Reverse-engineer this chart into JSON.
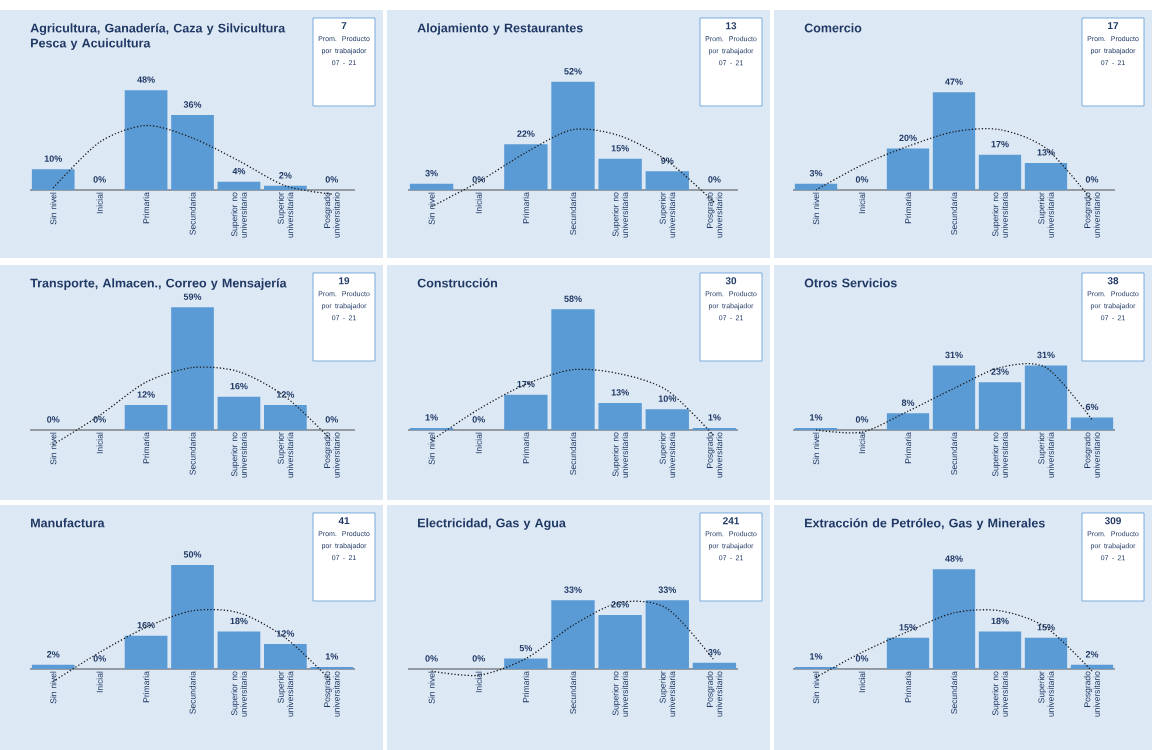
{
  "chart_data": [
    {
      "type": "bar",
      "title": "Agricultura, Ganadería, Caza y Silvicultura Pesca y Acuicultura",
      "categories": [
        "Sin nivel",
        "Inicial",
        "Primaria",
        "Secundaria",
        "Superior no universitaria",
        "Superior universitaria",
        "Posgrado universitario"
      ],
      "annotations": [
        "7",
        "Prom. Producto por trabajador 07 - 21"
      ],
      "series": [
        {
          "color": "#5b9bd5",
          "values": [
            10,
            0,
            48,
            36,
            4,
            2,
            0
          ],
          "value_labels": [
            "10%",
            "0%",
            "48%",
            "36%",
            "4%",
            "2%",
            "0%"
          ]
        },
        {
          "type": "line",
          "color": "#1a1a1a",
          "line_style": "dotted",
          "marker": "none",
          "values": [
            1,
            23,
            31,
            25,
            14,
            2,
            -2
          ]
        }
      ]
    },
    {
      "type": "bar",
      "title": "Alojamiento y Restaurantes",
      "categories": [
        "Sin nivel",
        "Inicial",
        "Primaria",
        "Secundaria",
        "Superior no universitaria",
        "Superior universitaria",
        "Posgrado universitario"
      ],
      "annotations": [
        "13",
        "Prom. Producto por trabajador 07 - 21"
      ],
      "series": [
        {
          "color": "#5b9bd5",
          "values": [
            3,
            0,
            22,
            52,
            15,
            9,
            0
          ],
          "value_labels": [
            "3%",
            "0%",
            "22%",
            "52%",
            "15%",
            "9%",
            "0%"
          ]
        },
        {
          "type": "line",
          "color": "#1a1a1a",
          "line_style": "dotted",
          "marker": "none",
          "values": [
            -8,
            4,
            18,
            29,
            26,
            14,
            -6
          ]
        }
      ]
    },
    {
      "type": "bar",
      "title": "Comercio",
      "categories": [
        "Sin nivel",
        "Inicial",
        "Primaria",
        "Secundaria",
        "Superior no universitaria",
        "Superior universitaria",
        "Posgrado universitario"
      ],
      "annotations": [
        "17",
        "Prom. Producto por trabajador 07 - 21"
      ],
      "series": [
        {
          "color": "#5b9bd5",
          "values": [
            3,
            0,
            20,
            47,
            17,
            13,
            0
          ],
          "value_labels": [
            "3%",
            "0%",
            "20%",
            "47%",
            "17%",
            "13%",
            "0%"
          ]
        },
        {
          "type": "line",
          "color": "#1a1a1a",
          "line_style": "dotted",
          "marker": "none",
          "values": [
            0,
            12,
            21,
            28,
            29,
            20,
            -5
          ]
        }
      ]
    },
    {
      "type": "bar",
      "title": "Transporte, Almacen., Correo y Mensajería",
      "categories": [
        "Sin nivel",
        "Inicial",
        "Primaria",
        "Secundaria",
        "Superior no universitaria",
        "Superior universitaria",
        "Posgrado universitario"
      ],
      "annotations": [
        "19",
        "Prom. Producto por trabajador 07 - 21"
      ],
      "series": [
        {
          "color": "#5b9bd5",
          "values": [
            0,
            0,
            12,
            59,
            16,
            12,
            0
          ],
          "value_labels": [
            "0%",
            "0%",
            "12%",
            "59%",
            "16%",
            "12%",
            "0%"
          ]
        },
        {
          "type": "line",
          "color": "#1a1a1a",
          "line_style": "dotted",
          "marker": "none",
          "values": [
            -7,
            7,
            23,
            30,
            28,
            16,
            -5
          ]
        }
      ]
    },
    {
      "type": "bar",
      "title": "Construcción",
      "categories": [
        "Sin nivel",
        "Inicial",
        "Primaria",
        "Secundaria",
        "Superior no universitaria",
        "Superior universitaria",
        "Posgrado universitario"
      ],
      "annotations": [
        "30",
        "Prom. Producto por trabajador 07 - 21"
      ],
      "series": [
        {
          "color": "#5b9bd5",
          "values": [
            1,
            0,
            17,
            58,
            13,
            10,
            1
          ],
          "value_labels": [
            "1%",
            "0%",
            "17%",
            "58%",
            "13%",
            "10%",
            "1%"
          ]
        },
        {
          "type": "line",
          "color": "#1a1a1a",
          "line_style": "dotted",
          "marker": "none",
          "values": [
            -5,
            10,
            22,
            29,
            27,
            19,
            -3
          ]
        }
      ]
    },
    {
      "type": "bar",
      "title": "Otros Servicios",
      "categories": [
        "Sin nivel",
        "Inicial",
        "Primaria",
        "Secundaria",
        "Superior no universitaria",
        "Superior universitaria",
        "Posgrado universitario"
      ],
      "annotations": [
        "38",
        "Prom. Producto por trabajador 07 - 21"
      ],
      "series": [
        {
          "color": "#5b9bd5",
          "values": [
            1,
            0,
            8,
            31,
            23,
            31,
            6
          ],
          "value_labels": [
            "1%",
            "0%",
            "8%",
            "31%",
            "23%",
            "31%",
            "6%"
          ]
        },
        {
          "type": "line",
          "color": "#1a1a1a",
          "line_style": "dotted",
          "marker": "none",
          "values": [
            0,
            -1,
            9,
            20,
            30,
            30,
            5
          ]
        }
      ]
    },
    {
      "type": "bar",
      "title": "Manufactura",
      "categories": [
        "Sin nivel",
        "Inicial",
        "Primaria",
        "Secundaria",
        "Superior no universitaria",
        "Superior universitaria",
        "Posgrado universitario"
      ],
      "annotations": [
        "41",
        "Prom. Producto por trabajador 07 - 21"
      ],
      "series": [
        {
          "color": "#5b9bd5",
          "values": [
            2,
            0,
            16,
            50,
            18,
            12,
            1
          ],
          "value_labels": [
            "2%",
            "0%",
            "16%",
            "50%",
            "18%",
            "12%",
            "1%"
          ]
        },
        {
          "type": "line",
          "color": "#1a1a1a",
          "line_style": "dotted",
          "marker": "none",
          "values": [
            -6,
            8,
            20,
            28,
            27,
            15,
            -6
          ]
        }
      ]
    },
    {
      "type": "bar",
      "title": "Electricidad, Gas y Agua",
      "categories": [
        "Sin nivel",
        "Inicial",
        "Primaria",
        "Secundaria",
        "Superior no universitaria",
        "Superior universitaria",
        "Posgrado universitario"
      ],
      "annotations": [
        "241",
        "Prom. Producto por trabajador 07 - 21"
      ],
      "series": [
        {
          "color": "#5b9bd5",
          "values": [
            0,
            0,
            5,
            33,
            26,
            33,
            3
          ],
          "value_labels": [
            "0%",
            "0%",
            "5%",
            "33%",
            "26%",
            "33%",
            "3%"
          ]
        },
        {
          "type": "line",
          "color": "#1a1a1a",
          "line_style": "dotted",
          "marker": "none",
          "values": [
            -1,
            -3,
            5,
            21,
            32,
            29,
            4
          ]
        }
      ]
    },
    {
      "type": "bar",
      "title": "Extracción de Petróleo, Gas y Minerales",
      "categories": [
        "Sin nivel",
        "Inicial",
        "Primaria",
        "Secundaria",
        "Superior no universitaria",
        "Superior universitaria",
        "Posgrado universitario"
      ],
      "annotations": [
        "309",
        "Prom. Producto por trabajador 07 - 21"
      ],
      "series": [
        {
          "color": "#5b9bd5",
          "values": [
            1,
            0,
            15,
            48,
            18,
            15,
            2
          ],
          "value_labels": [
            "1%",
            "0%",
            "15%",
            "48%",
            "18%",
            "15%",
            "2%"
          ]
        },
        {
          "type": "line",
          "color": "#1a1a1a",
          "line_style": "dotted",
          "marker": "none",
          "values": [
            -4,
            8,
            18,
            27,
            28,
            20,
            -1
          ]
        }
      ]
    }
  ]
}
